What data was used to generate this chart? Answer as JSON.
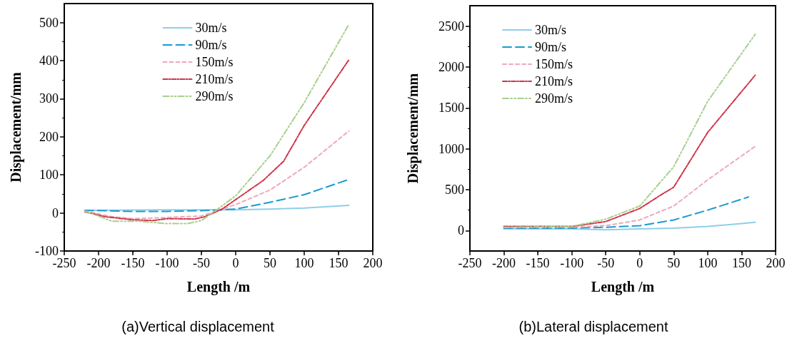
{
  "chart_data": [
    {
      "type": "line",
      "xlabel": "Length /m",
      "ylabel": "Displacement/mm",
      "annotations": [
        "(a)Vertical displacement"
      ],
      "xlim": [
        -250,
        200
      ],
      "xticks": [
        -250,
        -200,
        -150,
        -100,
        -50,
        0,
        50,
        100,
        150,
        200
      ],
      "ylim": [
        -100,
        550
      ],
      "yticks": [
        -100,
        0,
        100,
        200,
        300,
        400,
        500
      ],
      "grid": false,
      "legend": "top",
      "marker": "none",
      "series": [
        {
          "name": "30m/s",
          "color": "#8ecfe8",
          "line_style": "solid",
          "x": [
            -220,
            -100,
            0,
            50,
            100,
            165
          ],
          "values": [
            7,
            8,
            8,
            10,
            13,
            20
          ]
        },
        {
          "name": "90m/s",
          "color": "#1a9bd0",
          "line_style": "dashed",
          "x": [
            -220,
            -150,
            -100,
            -50,
            0,
            50,
            100,
            165
          ],
          "values": [
            7,
            4,
            4,
            6,
            10,
            28,
            48,
            88
          ]
        },
        {
          "name": "150m/s",
          "color": "#f0a8b8",
          "line_style": "dotted",
          "x": [
            -220,
            -180,
            -150,
            -100,
            -50,
            -20,
            0,
            50,
            100,
            165
          ],
          "values": [
            5,
            -10,
            -15,
            -12,
            -8,
            10,
            22,
            60,
            120,
            215
          ]
        },
        {
          "name": "210m/s",
          "color": "#d0344a",
          "line_style": "dashdot",
          "x": [
            -220,
            -190,
            -150,
            -120,
            -100,
            -60,
            -45,
            -20,
            0,
            40,
            70,
            100,
            165
          ],
          "values": [
            3,
            -10,
            -18,
            -20,
            -15,
            -16,
            -10,
            10,
            35,
            85,
            136,
            230,
            402
          ]
        },
        {
          "name": "290m/s",
          "color": "#a8cf8c",
          "line_style": "dashdotdot",
          "x": [
            -220,
            -180,
            -140,
            -100,
            -70,
            -50,
            -30,
            0,
            50,
            100,
            165
          ],
          "values": [
            5,
            -22,
            -22,
            -28,
            -28,
            -20,
            5,
            45,
            150,
            290,
            495
          ]
        }
      ]
    },
    {
      "type": "line",
      "xlabel": "Length /m",
      "ylabel": "Displacement/mm",
      "annotations": [
        "(b)Lateral displacement"
      ],
      "xlim": [
        -250,
        200
      ],
      "xticks": [
        -250,
        -200,
        -150,
        -100,
        -50,
        0,
        50,
        100,
        150,
        200
      ],
      "ylim": [
        -250,
        2750
      ],
      "yticks": [
        0,
        500,
        1000,
        1500,
        2000,
        2500
      ],
      "grid": false,
      "legend": "top left",
      "marker": "none",
      "series": [
        {
          "name": "30m/s",
          "color": "#8ecfe8",
          "line_style": "solid",
          "x": [
            -200,
            -100,
            -50,
            0,
            50,
            100,
            170
          ],
          "values": [
            20,
            20,
            10,
            20,
            30,
            50,
            100
          ]
        },
        {
          "name": "90m/s",
          "color": "#1a9bd0",
          "line_style": "dashed",
          "x": [
            -200,
            -100,
            -50,
            0,
            50,
            100,
            160
          ],
          "values": [
            30,
            30,
            40,
            60,
            130,
            250,
            410
          ]
        },
        {
          "name": "150m/s",
          "color": "#f0a8b8",
          "line_style": "dotted",
          "x": [
            -200,
            -100,
            -50,
            0,
            50,
            100,
            170
          ],
          "values": [
            40,
            40,
            60,
            130,
            300,
            620,
            1030
          ]
        },
        {
          "name": "210m/s",
          "color": "#d0344a",
          "line_style": "dashdot",
          "x": [
            -200,
            -100,
            -50,
            0,
            30,
            50,
            100,
            170
          ],
          "values": [
            50,
            50,
            110,
            270,
            430,
            530,
            1200,
            1900
          ]
        },
        {
          "name": "290m/s",
          "color": "#a8cf8c",
          "line_style": "dashdotdot",
          "x": [
            -200,
            -100,
            -50,
            0,
            50,
            100,
            170
          ],
          "values": [
            40,
            50,
            140,
            300,
            780,
            1580,
            2400
          ]
        }
      ]
    }
  ]
}
